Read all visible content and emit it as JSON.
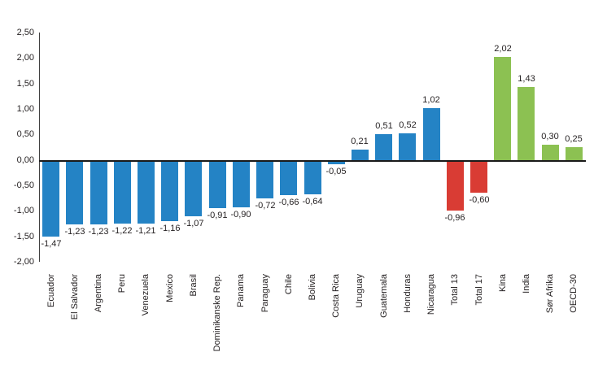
{
  "chart_data": {
    "type": "bar",
    "title": "",
    "xlabel": "",
    "ylabel": "",
    "grid": false,
    "legend": null,
    "ylim": [
      -2.0,
      2.5
    ],
    "ytick_step": 0.5,
    "ytick_labels": [
      "2,50",
      "2,00",
      "1,50",
      "1,00",
      "0,50",
      "0,00",
      "-0,50",
      "-1,00",
      "-1,50",
      "-2,00"
    ],
    "decimal_separator": ",",
    "group_colors": {
      "latin_america": "#2483C5",
      "totals": "#D93C34",
      "comparison": "#8CC152"
    },
    "axis_color": "#404040",
    "zero_line_color": "#1a1a1a",
    "text_color": "#231f20",
    "bars": [
      {
        "label": "Ecuador",
        "value": -1.47,
        "value_label": "-1,47",
        "group": "latin_america"
      },
      {
        "label": "El Salvador",
        "value": -1.23,
        "value_label": "-1,23",
        "group": "latin_america"
      },
      {
        "label": "Argentina",
        "value": -1.23,
        "value_label": "-1,23",
        "group": "latin_america"
      },
      {
        "label": "Peru",
        "value": -1.22,
        "value_label": "-1,22",
        "group": "latin_america"
      },
      {
        "label": "Venezuela",
        "value": -1.21,
        "value_label": "-1,21",
        "group": "latin_america"
      },
      {
        "label": "Mexico",
        "value": -1.16,
        "value_label": "-1,16",
        "group": "latin_america"
      },
      {
        "label": "Brasil",
        "value": -1.07,
        "value_label": "-1,07",
        "group": "latin_america"
      },
      {
        "label": "Dominikanske Rep.",
        "value": -0.91,
        "value_label": "-0,91",
        "group": "latin_america"
      },
      {
        "label": "Panama",
        "value": -0.9,
        "value_label": "-0,90",
        "group": "latin_america"
      },
      {
        "label": "Paraguay",
        "value": -0.72,
        "value_label": "-0,72",
        "group": "latin_america"
      },
      {
        "label": "Chile",
        "value": -0.66,
        "value_label": "-0,66",
        "group": "latin_america"
      },
      {
        "label": "Bolivia",
        "value": -0.64,
        "value_label": "-0,64",
        "group": "latin_america"
      },
      {
        "label": "Costa Rica",
        "value": -0.05,
        "value_label": "-0,05",
        "group": "latin_america"
      },
      {
        "label": "Uruguay",
        "value": 0.21,
        "value_label": "0,21",
        "group": "latin_america"
      },
      {
        "label": "Guatemala",
        "value": 0.51,
        "value_label": "0,51",
        "group": "latin_america"
      },
      {
        "label": "Honduras",
        "value": 0.52,
        "value_label": "0,52",
        "group": "latin_america"
      },
      {
        "label": "Nicaragua",
        "value": 1.02,
        "value_label": "1,02",
        "group": "latin_america"
      },
      {
        "label": "Total 13",
        "value": -0.96,
        "value_label": "-0,96",
        "group": "totals"
      },
      {
        "label": "Total 17",
        "value": -0.6,
        "value_label": "-0,60",
        "group": "totals"
      },
      {
        "label": "Kina",
        "value": 2.02,
        "value_label": "2,02",
        "group": "comparison"
      },
      {
        "label": "India",
        "value": 1.43,
        "value_label": "1,43",
        "group": "comparison"
      },
      {
        "label": "Sør Afrika",
        "value": 0.3,
        "value_label": "0,30",
        "group": "comparison"
      },
      {
        "label": "OECD-30",
        "value": 0.25,
        "value_label": "0,25",
        "group": "comparison"
      }
    ]
  }
}
